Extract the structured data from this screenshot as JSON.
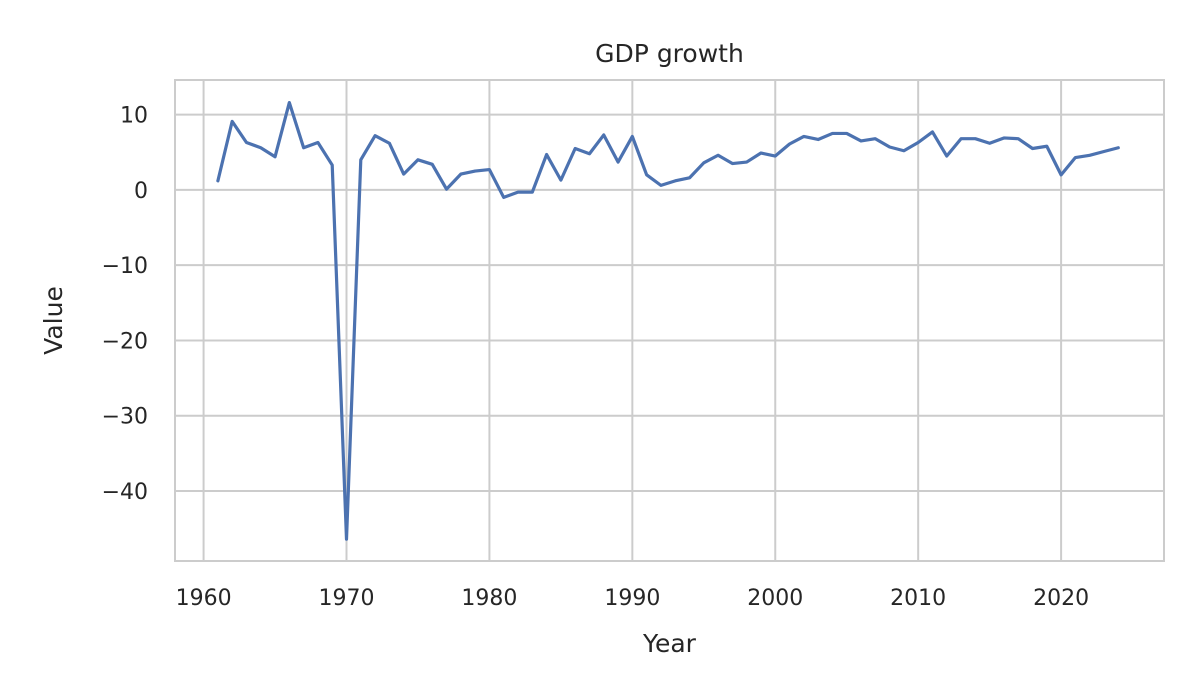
{
  "chart_data": {
    "type": "line",
    "title": "GDP growth",
    "xlabel": "Year",
    "ylabel": "Value",
    "xlim": [
      1958,
      1927.0
    ],
    "ylim": [
      -49.3,
      14.6
    ],
    "x_ticks": [
      1960,
      1970,
      1980,
      1990,
      2000,
      2010,
      2020
    ],
    "y_ticks": [
      -40,
      -30,
      -20,
      -10,
      0,
      10
    ],
    "grid": true,
    "legend": "none",
    "series": [
      {
        "name": "GDP growth",
        "color": "#4c72b0",
        "x": [
          1961,
          1962,
          1963,
          1964,
          1965,
          1966,
          1967,
          1968,
          1969,
          1970,
          1971,
          1972,
          1973,
          1974,
          1975,
          1976,
          1977,
          1978,
          1979,
          1980,
          1981,
          1982,
          1983,
          1984,
          1985,
          1986,
          1987,
          1988,
          1989,
          1990,
          1991,
          1992,
          1993,
          1994,
          1995,
          1996,
          1997,
          1998,
          1999,
          2000,
          2001,
          2002,
          2003,
          2004,
          2005,
          2006,
          2007,
          2008,
          2009,
          2010,
          2011,
          2012,
          2013,
          2014,
          2015,
          2016,
          2017,
          2018,
          2019,
          2020,
          2021,
          2022,
          2023,
          2024
        ],
        "values": [
          1.2,
          9.1,
          6.3,
          5.6,
          4.4,
          11.6,
          5.6,
          6.3,
          3.3,
          -46.4,
          4.0,
          7.2,
          6.2,
          2.1,
          4.0,
          3.4,
          0.1,
          2.1,
          2.5,
          2.7,
          -1.0,
          -0.3,
          -0.3,
          4.7,
          1.3,
          5.5,
          4.8,
          7.3,
          3.7,
          7.1,
          2.0,
          0.6,
          1.2,
          1.6,
          3.6,
          4.6,
          3.5,
          3.7,
          4.9,
          4.5,
          6.1,
          7.1,
          6.7,
          7.5,
          7.5,
          6.5,
          6.8,
          5.7,
          5.2,
          6.3,
          7.7,
          4.5,
          6.8,
          6.8,
          6.2,
          6.9,
          6.8,
          5.5,
          5.8,
          2.0,
          4.3,
          4.6,
          5.1,
          5.6
        ]
      }
    ]
  }
}
